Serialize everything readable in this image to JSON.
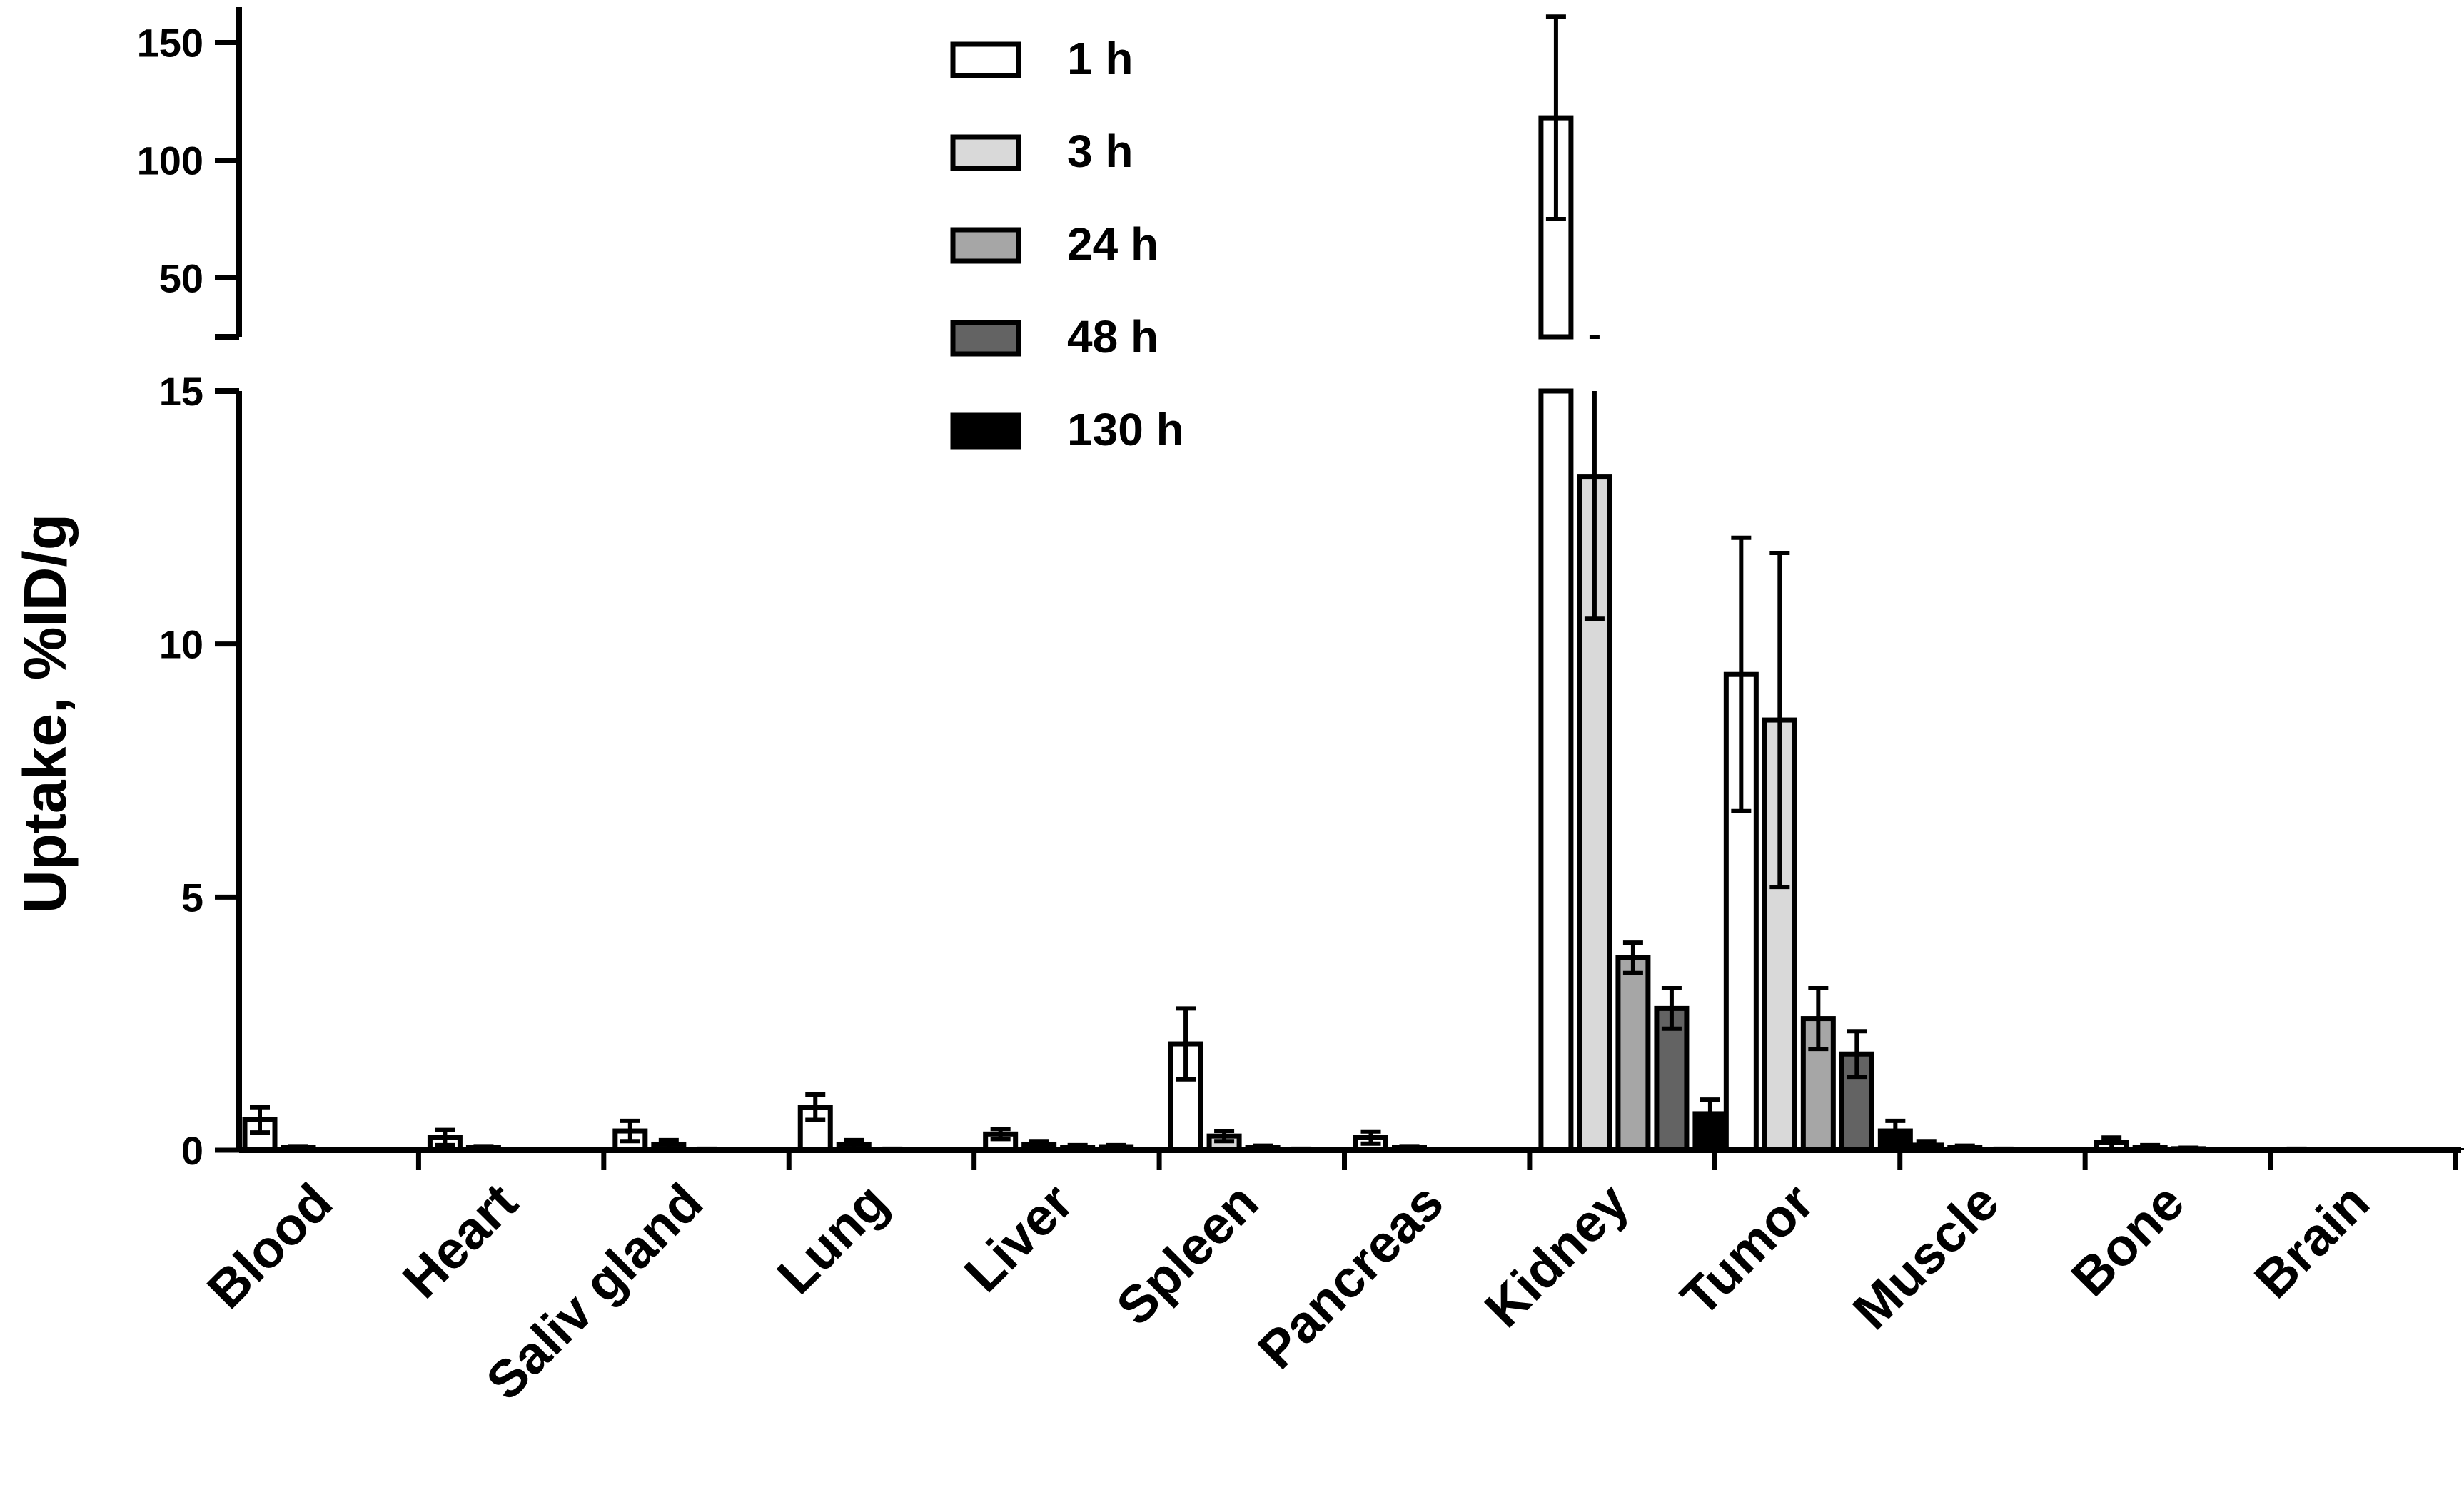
{
  "chart_data": {
    "type": "bar",
    "ylabel": "Uptake, %ID/g",
    "xlabel": "",
    "title": "",
    "y_axis_break": {
      "lower_ylim": [
        0,
        15
      ],
      "upper_ylim": [
        25,
        165
      ]
    },
    "yticks_lower": [
      0,
      5,
      10,
      15
    ],
    "yticks_upper": [
      50,
      100,
      150
    ],
    "ytick_labels_lower": [
      "0",
      "5",
      "10",
      "15"
    ],
    "ytick_labels_upper": [
      "50",
      "100",
      "150"
    ],
    "categories": [
      "Blood",
      "Heart",
      "Saliv gland",
      "Lung",
      "Liver",
      "Spleen",
      "Pancreas",
      "Kidney",
      "Tumor",
      "Muscle",
      "Bone",
      "Brain"
    ],
    "legend_position": "top-center",
    "colors": {
      "1 h": "#ffffff",
      "3 h": "#d9d9d9",
      "24 h": "#a6a6a6",
      "48 h": "#636363",
      "130 h": "#000000"
    },
    "series": [
      {
        "name": "1 h",
        "values": [
          0.6,
          0.25,
          0.38,
          0.85,
          0.32,
          2.1,
          0.25,
          118,
          9.4,
          0.1,
          0.15,
          0.02
        ],
        "errors": [
          0.25,
          0.15,
          0.2,
          0.25,
          0.1,
          0.7,
          0.12,
          43,
          2.7,
          0.08,
          0.1,
          0.01
        ]
      },
      {
        "name": "3 h",
        "values": [
          0.05,
          0.05,
          0.12,
          0.12,
          0.12,
          0.28,
          0.05,
          13.3,
          8.5,
          0.05,
          0.06,
          0.01
        ],
        "errors": [
          0.03,
          0.03,
          0.08,
          0.08,
          0.06,
          0.1,
          0.03,
          2.8,
          3.3,
          0.04,
          0.04,
          0.01
        ]
      },
      {
        "name": "24 h",
        "values": [
          0.01,
          0.01,
          0.02,
          0.02,
          0.06,
          0.05,
          0.01,
          3.8,
          2.6,
          0.02,
          0.03,
          0.01
        ],
        "errors": [
          0.01,
          0.01,
          0.01,
          0.01,
          0.04,
          0.04,
          0.01,
          0.3,
          0.6,
          0.01,
          0.02,
          0.01
        ]
      },
      {
        "name": "48 h",
        "values": [
          0.01,
          0.01,
          0.01,
          0.01,
          0.07,
          0.02,
          0.01,
          2.8,
          1.9,
          0.01,
          0.01,
          0.01
        ],
        "errors": [
          0.01,
          0.01,
          0.01,
          0.01,
          0.03,
          0.01,
          0.01,
          0.4,
          0.45,
          0.01,
          0.01,
          0.01
        ]
      },
      {
        "name": "130 h",
        "values": [
          0.0,
          0.0,
          0.0,
          0.0,
          0.0,
          0.0,
          0.0,
          0.72,
          0.38,
          0.0,
          0.0,
          0.0
        ],
        "errors": [
          0.0,
          0.0,
          0.0,
          0.0,
          0.0,
          0.0,
          0.0,
          0.28,
          0.2,
          0.0,
          0.0,
          0.0
        ]
      }
    ]
  }
}
